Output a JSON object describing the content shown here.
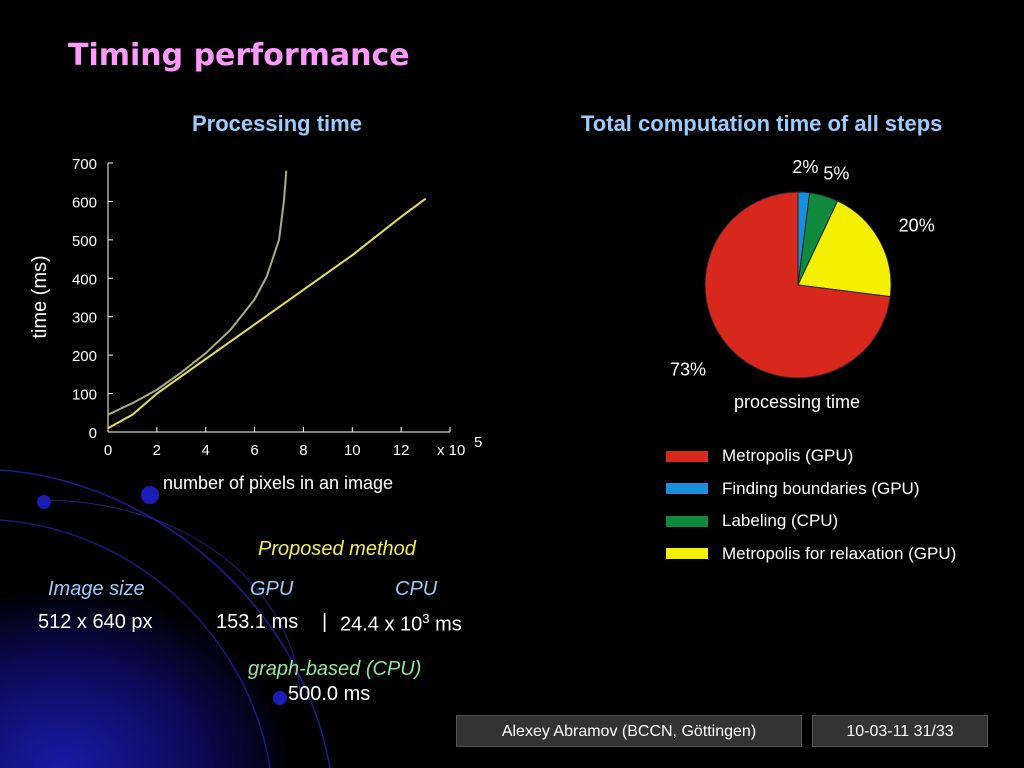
{
  "slide": {
    "title": "Timing performance",
    "footer_author": "Alexey Abramov (BCCN, Göttingen)",
    "footer_date_page": "10-03-11 31/33"
  },
  "line_chart_title": "Processing time",
  "pie_chart_title": "Total computation time of all steps",
  "table": {
    "proposed_label": "Proposed method",
    "col_image_size": "Image size",
    "col_gpu": "GPU",
    "col_cpu": "CPU",
    "image_size_value": "512 x 640 px",
    "gpu_value": "153.1 ms",
    "separator": "|",
    "cpu_value_prefix": "24.4 x 10",
    "cpu_value_exp": "3",
    "cpu_value_unit": " ms",
    "graph_label": "graph-based (CPU)",
    "graph_value": "500.0 ms"
  },
  "chart_data": [
    {
      "type": "line",
      "title": "Processing time",
      "xlabel": "number of pixels in an image",
      "ylabel": "time (ms)",
      "x_multiplier_label": "x 10",
      "x_multiplier_exp": "5",
      "xlim": [
        0,
        14
      ],
      "ylim": [
        0,
        700
      ],
      "x_ticks": [
        0,
        2,
        4,
        6,
        8,
        10,
        12
      ],
      "y_ticks": [
        0,
        100,
        200,
        300,
        400,
        500,
        600,
        700
      ],
      "grid": false,
      "series": [
        {
          "color": "#a6b07a",
          "x": [
            0,
            0.5,
            1,
            2,
            3,
            4,
            5,
            6,
            6.5,
            7,
            7.2,
            7.3
          ],
          "y": [
            45,
            60,
            75,
            110,
            155,
            205,
            265,
            345,
            405,
            500,
            600,
            680
          ]
        },
        {
          "color": "#e8e04a",
          "x": [
            0,
            1,
            2,
            4,
            6,
            8,
            10,
            12,
            13
          ],
          "y": [
            10,
            45,
            100,
            190,
            280,
            370,
            460,
            560,
            607
          ]
        }
      ]
    },
    {
      "type": "pie",
      "xlabel": "processing time",
      "slices": [
        {
          "label": "Finding boundaries (GPU)",
          "value": 2,
          "text": "2%",
          "color": "#1a8fdd"
        },
        {
          "label": "Labeling (CPU)",
          "value": 5,
          "text": "5%",
          "color": "#0f8a3c"
        },
        {
          "label": "Metropolis for relaxation (GPU)",
          "value": 20,
          "text": "20%",
          "color": "#f5f000"
        },
        {
          "label": "Metropolis (GPU)",
          "value": 73,
          "text": "73%",
          "color": "#d8281e"
        }
      ],
      "legend": [
        {
          "label": "Metropolis (GPU)",
          "color": "#d8281e"
        },
        {
          "label": "Finding boundaries (GPU)",
          "color": "#1a8fdd"
        },
        {
          "label": "Labeling (CPU)",
          "color": "#0f8a3c"
        },
        {
          "label": "Metropolis for relaxation (GPU)",
          "color": "#f5f000"
        }
      ]
    }
  ]
}
